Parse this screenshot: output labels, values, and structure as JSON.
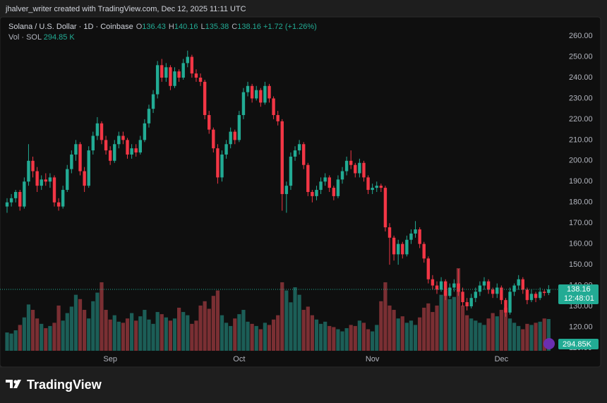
{
  "header": {
    "text": "jhalver_writer created with TradingView.com, Dec 12, 2025 11:11 UTC"
  },
  "footer": {
    "brand": "TradingView"
  },
  "legend": {
    "title": "Solana / U.S. Dollar · 1D · Coinbase",
    "fields": [
      {
        "key": "O",
        "value": "136.43"
      },
      {
        "key": "H",
        "value": "140.16"
      },
      {
        "key": "L",
        "value": "135.38"
      },
      {
        "key": "C",
        "value": "138.16"
      }
    ],
    "change": "+1.72 (+1.26%)",
    "volume_key": "Vol · SOL",
    "volume_value": "294.85 K"
  },
  "chart_data": {
    "type": "candlestick",
    "categories": [
      null,
      null,
      null,
      null,
      null,
      null,
      null,
      null,
      null,
      null,
      null,
      null,
      null,
      null,
      null,
      null,
      null,
      null,
      null,
      null,
      null,
      null,
      null,
      null,
      "Sep",
      null,
      null,
      null,
      null,
      null,
      null,
      null,
      null,
      null,
      null,
      null,
      null,
      null,
      null,
      null,
      null,
      null,
      null,
      null,
      null,
      null,
      null,
      null,
      null,
      null,
      null,
      null,
      null,
      null,
      "Oct",
      null,
      null,
      null,
      null,
      null,
      null,
      null,
      null,
      null,
      null,
      null,
      null,
      null,
      null,
      null,
      null,
      null,
      null,
      null,
      null,
      null,
      null,
      null,
      null,
      null,
      null,
      null,
      null,
      null,
      null,
      "Nov",
      null,
      null,
      null,
      null,
      null,
      null,
      null,
      null,
      null,
      null,
      null,
      null,
      null,
      null,
      null,
      null,
      null,
      null,
      null,
      null,
      null,
      null,
      null,
      null,
      null,
      null,
      null,
      null,
      null,
      "Dec",
      null,
      null,
      null,
      null,
      null,
      null,
      null,
      null,
      null,
      null,
      null
    ],
    "ohlc": [
      [
        178,
        182,
        175,
        180
      ],
      [
        180,
        184,
        178,
        182
      ],
      [
        182,
        186,
        180,
        185
      ],
      [
        185,
        186,
        176,
        178
      ],
      [
        178,
        192,
        177,
        190
      ],
      [
        190,
        208,
        188,
        200
      ],
      [
        200,
        202,
        192,
        195
      ],
      [
        195,
        197,
        185,
        188
      ],
      [
        188,
        193,
        186,
        191
      ],
      [
        191,
        194,
        188,
        190
      ],
      [
        190,
        194,
        187,
        192
      ],
      [
        192,
        193,
        178,
        180
      ],
      [
        180,
        182,
        176,
        178
      ],
      [
        178,
        188,
        177,
        186
      ],
      [
        186,
        198,
        185,
        196
      ],
      [
        196,
        205,
        194,
        203
      ],
      [
        203,
        210,
        200,
        208
      ],
      [
        208,
        209,
        193,
        195
      ],
      [
        195,
        197,
        185,
        188
      ],
      [
        188,
        207,
        187,
        205
      ],
      [
        205,
        214,
        203,
        212
      ],
      [
        212,
        221,
        210,
        218
      ],
      [
        218,
        219,
        208,
        210
      ],
      [
        210,
        212,
        203,
        205
      ],
      [
        205,
        207,
        198,
        200
      ],
      [
        200,
        210,
        199,
        208
      ],
      [
        208,
        214,
        206,
        212
      ],
      [
        212,
        214,
        208,
        210
      ],
      [
        210,
        211,
        201,
        203
      ],
      [
        203,
        208,
        201,
        206
      ],
      [
        206,
        208,
        202,
        204
      ],
      [
        204,
        212,
        203,
        210
      ],
      [
        210,
        220,
        209,
        218
      ],
      [
        218,
        227,
        216,
        225
      ],
      [
        225,
        234,
        223,
        232
      ],
      [
        232,
        248,
        230,
        246
      ],
      [
        246,
        249,
        238,
        240
      ],
      [
        240,
        247,
        238,
        245
      ],
      [
        245,
        246,
        234,
        236
      ],
      [
        236,
        245,
        235,
        243
      ],
      [
        243,
        244,
        238,
        240
      ],
      [
        240,
        249,
        239,
        247
      ],
      [
        247,
        253,
        245,
        250
      ],
      [
        250,
        251,
        240,
        242
      ],
      [
        242,
        244,
        238,
        240
      ],
      [
        240,
        242,
        236,
        238
      ],
      [
        238,
        239,
        220,
        222
      ],
      [
        222,
        224,
        213,
        215
      ],
      [
        215,
        216,
        204,
        206
      ],
      [
        206,
        208,
        189,
        192
      ],
      [
        192,
        205,
        190,
        203
      ],
      [
        203,
        210,
        201,
        208
      ],
      [
        208,
        216,
        206,
        214
      ],
      [
        214,
        215,
        208,
        210
      ],
      [
        210,
        224,
        209,
        222
      ],
      [
        222,
        235,
        220,
        233
      ],
      [
        233,
        238,
        231,
        236
      ],
      [
        236,
        237,
        228,
        230
      ],
      [
        230,
        236,
        229,
        234
      ],
      [
        234,
        235,
        226,
        228
      ],
      [
        228,
        238,
        227,
        236
      ],
      [
        236,
        237,
        228,
        230
      ],
      [
        230,
        231,
        220,
        222
      ],
      [
        222,
        224,
        217,
        219
      ],
      [
        219,
        220,
        176,
        184
      ],
      [
        184,
        190,
        175,
        188
      ],
      [
        188,
        204,
        186,
        202
      ],
      [
        202,
        207,
        200,
        205
      ],
      [
        205,
        210,
        203,
        208
      ],
      [
        208,
        209,
        196,
        198
      ],
      [
        198,
        199,
        183,
        185
      ],
      [
        185,
        186,
        180,
        183
      ],
      [
        183,
        188,
        181,
        186
      ],
      [
        186,
        192,
        184,
        190
      ],
      [
        190,
        194,
        188,
        192
      ],
      [
        192,
        193,
        185,
        187
      ],
      [
        187,
        188,
        181,
        183
      ],
      [
        183,
        193,
        182,
        191
      ],
      [
        191,
        197,
        189,
        195
      ],
      [
        195,
        202,
        193,
        200
      ],
      [
        200,
        205,
        196,
        198
      ],
      [
        198,
        199,
        192,
        194
      ],
      [
        194,
        201,
        192,
        199
      ],
      [
        199,
        200,
        190,
        192
      ],
      [
        192,
        193,
        184,
        186
      ],
      [
        186,
        189,
        184,
        187
      ],
      [
        187,
        190,
        185,
        188
      ],
      [
        188,
        189,
        185,
        187
      ],
      [
        187,
        188,
        166,
        168
      ],
      [
        168,
        170,
        150,
        163
      ],
      [
        163,
        164,
        152,
        155
      ],
      [
        155,
        162,
        150,
        160
      ],
      [
        160,
        161,
        153,
        155
      ],
      [
        155,
        164,
        154,
        162
      ],
      [
        162,
        167,
        160,
        165
      ],
      [
        165,
        171,
        163,
        167
      ],
      [
        167,
        168,
        158,
        160
      ],
      [
        160,
        161,
        151,
        153
      ],
      [
        153,
        154,
        141,
        143
      ],
      [
        143,
        145,
        138,
        140
      ],
      [
        140,
        142,
        136,
        138
      ],
      [
        138,
        144,
        137,
        142
      ],
      [
        142,
        143,
        133,
        135
      ],
      [
        135,
        141,
        134,
        139
      ],
      [
        139,
        143,
        137,
        141
      ],
      [
        141,
        148,
        135,
        137
      ],
      [
        137,
        139,
        130,
        132
      ],
      [
        132,
        134,
        128,
        130
      ],
      [
        130,
        136,
        129,
        134
      ],
      [
        134,
        139,
        132,
        137
      ],
      [
        137,
        142,
        135,
        140
      ],
      [
        140,
        144,
        138,
        142
      ],
      [
        142,
        143,
        136,
        138
      ],
      [
        138,
        139,
        134,
        136
      ],
      [
        136,
        141,
        134,
        139
      ],
      [
        139,
        140,
        131,
        133
      ],
      [
        133,
        134,
        125,
        127
      ],
      [
        127,
        139,
        126,
        137
      ],
      [
        137,
        141,
        135,
        140
      ],
      [
        140,
        145,
        138,
        143
      ],
      [
        143,
        144,
        136,
        138
      ],
      [
        138,
        139,
        131,
        133
      ],
      [
        133,
        138,
        132,
        136
      ],
      [
        136,
        137,
        132,
        134
      ],
      [
        134,
        139,
        133,
        137
      ],
      [
        137,
        138,
        135,
        136.44
      ],
      [
        136.43,
        140.16,
        135.38,
        138.16
      ]
    ],
    "volume": [
      170,
      160,
      190,
      240,
      310,
      430,
      380,
      300,
      250,
      210,
      230,
      260,
      420,
      280,
      350,
      410,
      520,
      480,
      380,
      300,
      460,
      540,
      636,
      380,
      290,
      330,
      270,
      260,
      300,
      350,
      280,
      320,
      380,
      290,
      250,
      360,
      340,
      310,
      280,
      300,
      400,
      360,
      330,
      250,
      280,
      420,
      460,
      390,
      510,
      560,
      330,
      260,
      230,
      300,
      340,
      380,
      270,
      250,
      230,
      200,
      260,
      240,
      290,
      330,
      636,
      560,
      450,
      590,
      520,
      380,
      410,
      330,
      290,
      250,
      270,
      230,
      220,
      200,
      180,
      210,
      240,
      230,
      280,
      260,
      200,
      180,
      240,
      460,
      636,
      420,
      380,
      300,
      320,
      260,
      280,
      240,
      310,
      400,
      440,
      360,
      420,
      520,
      560,
      480,
      500,
      767,
      420,
      330,
      300,
      280,
      260,
      240,
      300,
      350,
      320,
      380,
      400,
      300,
      260,
      230,
      200,
      250,
      240,
      260,
      270,
      300,
      294.85
    ],
    "up_color": "#22ab94",
    "down_color": "#f23645",
    "volume_up_color": "#1c5e57",
    "volume_down_color": "#7a2f33",
    "ylim": [
      100.8,
      269.2
    ],
    "yticks": [
      {
        "value": 110,
        "label": "110.00"
      },
      {
        "value": 120,
        "label": "120.00"
      },
      {
        "value": 130,
        "label": "130.00"
      },
      {
        "value": 140,
        "label": "140.00"
      },
      {
        "value": 150,
        "label": "150.00"
      },
      {
        "value": 160,
        "label": "160.00"
      },
      {
        "value": 170,
        "label": "170.00"
      },
      {
        "value": 180,
        "label": "180.00"
      },
      {
        "value": 190,
        "label": "190.00"
      },
      {
        "value": 200,
        "label": "200.00"
      },
      {
        "value": 210,
        "label": "210.00"
      },
      {
        "value": 220,
        "label": "220.00"
      },
      {
        "value": 230,
        "label": "230.00"
      },
      {
        "value": 240,
        "label": "240.00"
      },
      {
        "value": 250,
        "label": "250.00"
      },
      {
        "value": 260,
        "label": "260.00"
      }
    ],
    "vlim": [
      0,
      3100
    ],
    "price_tag": "138.16",
    "countdown": "12:48:01",
    "volume_tag": "294.85K"
  }
}
